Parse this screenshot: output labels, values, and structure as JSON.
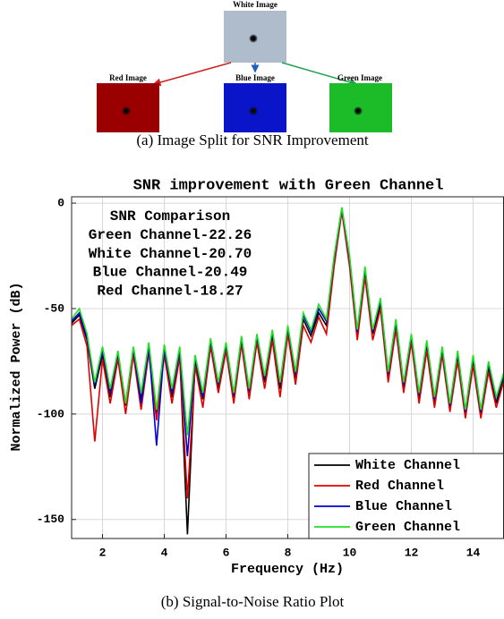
{
  "diagram": {
    "white_label": "White Image",
    "red_label": "Red Image",
    "blue_label": "Blue Image",
    "green_label": "Green Image",
    "caption": "(a) Image Split for SNR Improvement"
  },
  "chart_data": {
    "type": "line",
    "title": "SNR improvement with Green Channel",
    "xlabel": "Frequency (Hz)",
    "ylabel": "Normalized Power (dB)",
    "annotation": [
      "SNR Comparison",
      "Green Channel-22.26",
      "White Channel-20.70",
      "Blue Channel-20.49",
      "Red Channel-18.27"
    ],
    "caption": "(b) Signal-to-Noise Ratio Plot",
    "x": [
      1,
      1.25,
      1.5,
      1.75,
      2,
      2.25,
      2.5,
      2.75,
      3,
      3.25,
      3.5,
      3.75,
      4,
      4.25,
      4.5,
      4.75,
      5,
      5.25,
      5.5,
      5.75,
      6,
      6.25,
      6.5,
      6.75,
      7,
      7.25,
      7.5,
      7.75,
      8,
      8.25,
      8.5,
      8.75,
      9,
      9.25,
      9.5,
      9.75,
      10,
      10.25,
      10.5,
      10.75,
      11,
      11.25,
      11.5,
      11.75,
      12,
      12.25,
      12.5,
      12.75,
      13,
      13.25,
      13.5,
      13.75,
      14,
      14.25,
      14.5,
      14.75,
      15
    ],
    "series": [
      {
        "name": "White Channel",
        "color": "#000000",
        "values": [
          -57,
          -53,
          -65,
          -88,
          -72,
          -92,
          -73,
          -96,
          -71,
          -93,
          -70,
          -100,
          -70,
          -92,
          -72,
          -157,
          -75,
          -93,
          -67,
          -88,
          -69,
          -92,
          -66,
          -90,
          -65,
          -85,
          -63,
          -88,
          -61,
          -83,
          -55,
          -63,
          -52,
          -58,
          -28,
          -3,
          -28,
          -62,
          -33,
          -62,
          -48,
          -82,
          -58,
          -88,
          -65,
          -93,
          -68,
          -95,
          -71,
          -97,
          -73,
          -100,
          -75,
          -100,
          -78,
          -95,
          -82
        ]
      },
      {
        "name": "Red Channel",
        "color": "#e00000",
        "values": [
          -58,
          -55,
          -68,
          -113,
          -74,
          -95,
          -74,
          -100,
          -72,
          -98,
          -71,
          -103,
          -72,
          -95,
          -73,
          -140,
          -77,
          -97,
          -68,
          -90,
          -70,
          -95,
          -67,
          -93,
          -66,
          -88,
          -65,
          -92,
          -62,
          -86,
          -58,
          -66,
          -54,
          -62,
          -30,
          -4,
          -30,
          -65,
          -35,
          -65,
          -50,
          -85,
          -60,
          -90,
          -66,
          -95,
          -70,
          -97,
          -72,
          -99,
          -75,
          -102,
          -77,
          -102,
          -80,
          -97,
          -84
        ]
      },
      {
        "name": "Blue Channel",
        "color": "#0000d0",
        "values": [
          -56,
          -52,
          -64,
          -86,
          -70,
          -90,
          -71,
          -95,
          -69,
          -95,
          -68,
          -115,
          -69,
          -90,
          -70,
          -120,
          -73,
          -92,
          -65,
          -86,
          -67,
          -91,
          -64,
          -89,
          -63,
          -83,
          -61,
          -86,
          -59,
          -81,
          -53,
          -61,
          -50,
          -56,
          -26,
          -2.5,
          -26,
          -61,
          -31,
          -61,
          -46,
          -81,
          -56,
          -86,
          -63,
          -91,
          -66,
          -93,
          -69,
          -96,
          -71,
          -99,
          -73,
          -99,
          -76,
          -93,
          -81
        ]
      },
      {
        "name": "Green Channel",
        "color": "#22e022",
        "values": [
          -55,
          -50,
          -62,
          -85,
          -68,
          -88,
          -70,
          -95,
          -68,
          -90,
          -66,
          -98,
          -67,
          -88,
          -68,
          -110,
          -72,
          -90,
          -64,
          -85,
          -66,
          -90,
          -63,
          -88,
          -62,
          -82,
          -60,
          -85,
          -58,
          -80,
          -52,
          -60,
          -48,
          -55,
          -25,
          -2,
          -25,
          -60,
          -30,
          -60,
          -45,
          -80,
          -55,
          -85,
          -62,
          -90,
          -65,
          -92,
          -68,
          -95,
          -70,
          -98,
          -72,
          -98,
          -75,
          -92,
          -80
        ]
      }
    ],
    "xlim": [
      1,
      15
    ],
    "ylim": [
      -159,
      3
    ],
    "xticks": [
      2,
      4,
      6,
      8,
      10,
      12,
      14
    ],
    "yticks": [
      0,
      -50,
      -100,
      -150
    ],
    "grid": true,
    "legend": "lower right"
  }
}
